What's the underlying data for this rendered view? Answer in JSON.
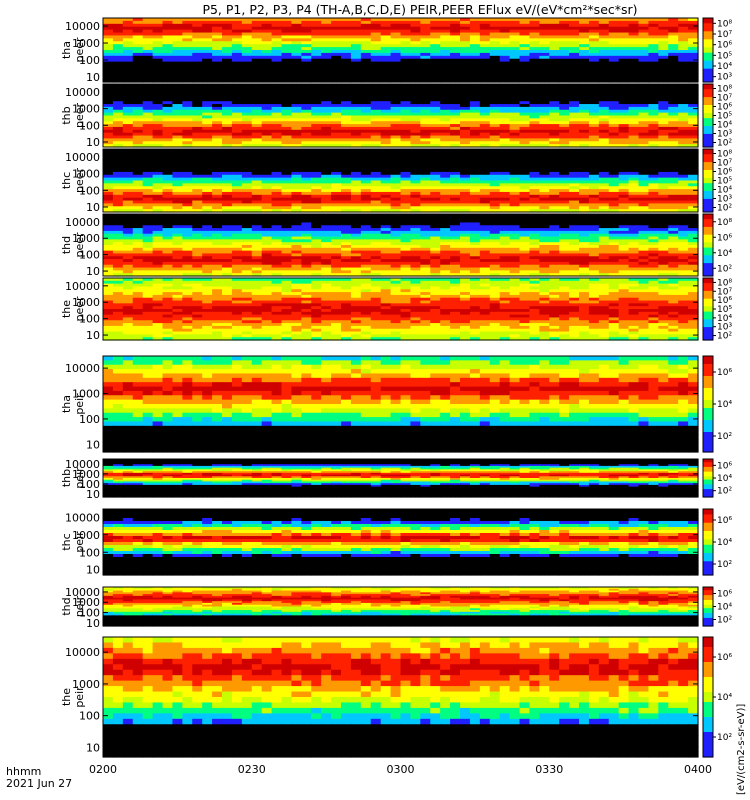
{
  "figure": {
    "title": "P5, P1, P2, P3, P4 (TH-A,B,C,D,E) PEIR,PEER EFlux eV/(eV*cm²*sec*sr)",
    "time_label_line1": "hhmm",
    "time_label_line2": "2021 Jun 27",
    "colorbar_label_eer": "[eV/(cm²-s-sr-eV)]",
    "colorbar_label_eir": "[eV/(cm²-s-sr-eV)]",
    "bottom_colorbar_label": "[eV/(cm2-s-sr-eV)]"
  },
  "chart_data": {
    "type": "heatmap",
    "title": "P5, P1, P2, P3, P4 (TH-A,B,C,D,E) PEIR,PEER EFlux eV/(eV*cm²*sec*sr)",
    "x_axis": {
      "ticks": [
        "0200",
        "0230",
        "0300",
        "0330",
        "0400"
      ],
      "range": [
        "02:00",
        "04:00"
      ],
      "label": "hhmm",
      "date": "2021 Jun 27"
    },
    "y_axis": {
      "scale": "log",
      "unit": "eV",
      "range": [
        5,
        30000
      ],
      "ticks": [
        "10",
        "100",
        "1000",
        "10000"
      ]
    },
    "panels": [
      {
        "probe": "tha",
        "species": "peer",
        "label_top": "tha",
        "label_bottom": "peer",
        "colorbar_ticks": [
          "10⁸",
          "10⁷",
          "10⁶",
          "10⁵",
          "10⁴",
          "10³"
        ],
        "band_center_log": 3.9,
        "band_width": 0.55
      },
      {
        "probe": "thb",
        "species": "peer",
        "label_top": "thb",
        "label_bottom": "peer",
        "colorbar_ticks": [
          "10⁸",
          "10⁷",
          "10⁶",
          "10⁵",
          "10⁴",
          "10³",
          "10²"
        ],
        "band_center_log": 1.6,
        "band_width": 0.5
      },
      {
        "probe": "thc",
        "species": "peer",
        "label_top": "thc",
        "label_bottom": "peer",
        "colorbar_ticks": [
          "10⁸",
          "10⁷",
          "10⁶",
          "10⁵",
          "10⁴",
          "10³",
          "10²"
        ],
        "band_center_log": 1.5,
        "band_width": 0.45
      },
      {
        "probe": "thd",
        "species": "peer",
        "label_top": "thd",
        "label_bottom": "peer",
        "colorbar_ticks": [
          "10⁸",
          "10⁶",
          "10⁴",
          "10²"
        ],
        "band_center_log": 1.7,
        "band_width": 0.6
      },
      {
        "probe": "the",
        "species": "peer",
        "label_top": "the",
        "label_bottom": "peer",
        "colorbar_ticks": [
          "10⁸",
          "10⁷",
          "10⁶",
          "10⁵",
          "10⁴",
          "10³",
          "10²"
        ],
        "band_center_log": 2.5,
        "band_width": 0.9
      },
      {
        "probe": "tha",
        "species": "peir",
        "label_top": "tha",
        "label_bottom": "peir",
        "colorbar_ticks": [
          "10⁶",
          "10⁴",
          "10²"
        ],
        "band_center_log": 3.2,
        "band_width": 0.5
      },
      {
        "probe": "thb",
        "species": "peir",
        "label_top": "thb",
        "label_bottom": "peir",
        "colorbar_ticks": [
          "10⁶",
          "10⁴",
          "10²"
        ],
        "band_center_log": 2.9,
        "band_width": 0.3
      },
      {
        "probe": "thc",
        "species": "peir",
        "label_top": "thc",
        "label_bottom": "peir",
        "colorbar_ticks": [
          "10⁶",
          "10⁴",
          "10²"
        ],
        "band_center_log": 2.8,
        "band_width": 0.3
      },
      {
        "probe": "thd",
        "species": "peir",
        "label_top": "thd",
        "label_bottom": "peir",
        "colorbar_ticks": [
          "10⁶",
          "10⁴",
          "10²"
        ],
        "band_center_log": 3.4,
        "band_width": 0.6
      },
      {
        "probe": "the",
        "species": "peir",
        "label_top": "the",
        "label_bottom": "peir",
        "colorbar_ticks": [
          "10⁶",
          "10⁴",
          "10²"
        ],
        "band_center_log": 3.5,
        "band_width": 0.6
      }
    ],
    "colormap": [
      "#000000",
      "#2020ff",
      "#00c8ff",
      "#00ff80",
      "#c8ff00",
      "#ffff00",
      "#ff9900",
      "#ff2000",
      "#d00000"
    ],
    "grid": false,
    "legend": "colorbars-right"
  }
}
